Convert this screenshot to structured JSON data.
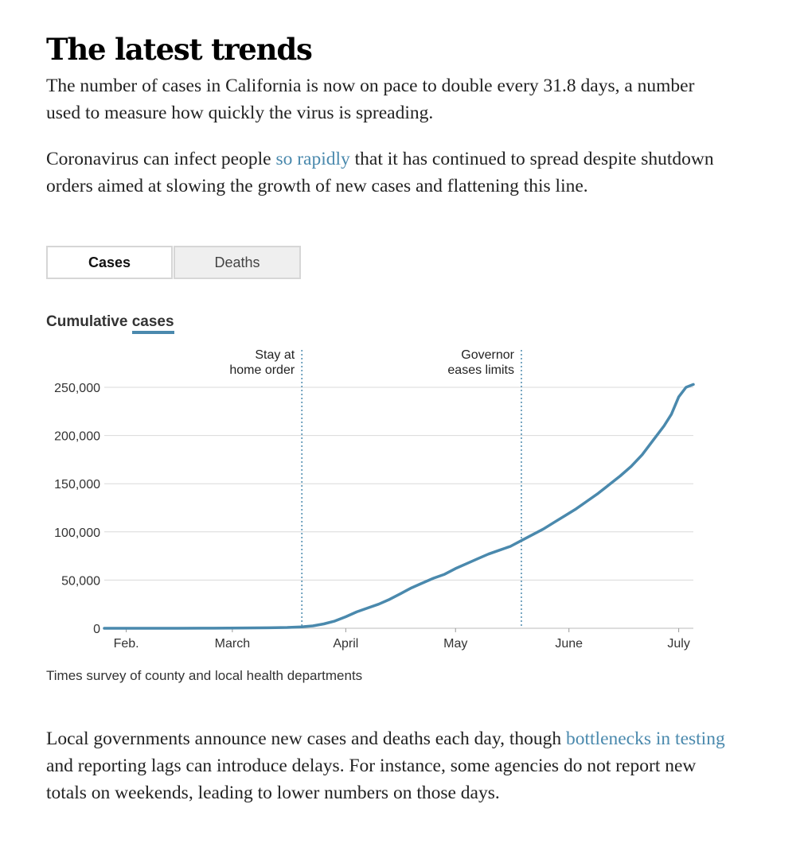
{
  "heading": "The latest trends",
  "intro": "The number of cases in California is now on pace to double every 31.8 days, a number used to measure how quickly the virus is spreading.",
  "para2": {
    "before": "Coronavirus can infect people ",
    "link": "so rapidly",
    "after": " that it has continued to spread despite shutdown orders aimed at slowing the growth of new cases and flattening this line."
  },
  "tabs": [
    {
      "label": "Cases",
      "active": true
    },
    {
      "label": "Deaths",
      "active": false
    }
  ],
  "chart_title": {
    "prefix": "Cumulative ",
    "series": "cases"
  },
  "source": "Times survey of county and local health departments",
  "para3": {
    "before": "Local governments announce new cases and deaths each day, though ",
    "link": "bottlenecks in testing",
    "after": " and reporting lags can introduce delays. For instance, some agencies do not report new totals on weekends, leading to lower numbers on those days."
  },
  "colors": {
    "line": "#4a89ad",
    "grid": "#d9d9d9",
    "annotation": "#4a89ad",
    "link": "#4a89ad"
  },
  "chart_data": {
    "type": "line",
    "title": "Cumulative cases",
    "xlabel": "",
    "ylabel": "",
    "x_unit": "days since Jan. 26",
    "xlim": [
      0,
      161
    ],
    "ylim": [
      0,
      250000
    ],
    "yticks": [
      0,
      50000,
      100000,
      150000,
      200000,
      250000
    ],
    "ytick_labels": [
      "0",
      "50,000",
      "100,000",
      "150,000",
      "200,000",
      "250,000"
    ],
    "xticks": [
      {
        "label": "Feb.",
        "day": 6
      },
      {
        "label": "March",
        "day": 35
      },
      {
        "label": "April",
        "day": 66
      },
      {
        "label": "May",
        "day": 96
      },
      {
        "label": "June",
        "day": 127
      },
      {
        "label": "July",
        "day": 157
      }
    ],
    "annotations": [
      {
        "day": 54,
        "lines": [
          "Stay at",
          "home order"
        ]
      },
      {
        "day": 114,
        "lines": [
          "Governor",
          "eases limits"
        ]
      }
    ],
    "series": [
      {
        "name": "cases",
        "x": [
          0,
          10,
          20,
          30,
          38,
          45,
          50,
          54,
          57,
          60,
          63,
          66,
          69,
          72,
          75,
          78,
          81,
          84,
          87,
          90,
          93,
          96,
          99,
          102,
          105,
          108,
          111,
          114,
          117,
          120,
          123,
          126,
          129,
          132,
          135,
          138,
          141,
          144,
          147,
          150,
          153,
          155,
          157,
          159,
          161
        ],
        "y": [
          0,
          0,
          0,
          100,
          300,
          500,
          800,
          1500,
          2500,
          4500,
          7500,
          12000,
          17000,
          21000,
          25000,
          30000,
          36000,
          42000,
          47000,
          52000,
          56000,
          62000,
          67000,
          72000,
          77000,
          81000,
          85000,
          91000,
          97000,
          103000,
          110000,
          117000,
          124000,
          132000,
          140000,
          149000,
          158000,
          168000,
          180000,
          195000,
          210000,
          222000,
          240000,
          250000,
          253000
        ]
      }
    ]
  }
}
